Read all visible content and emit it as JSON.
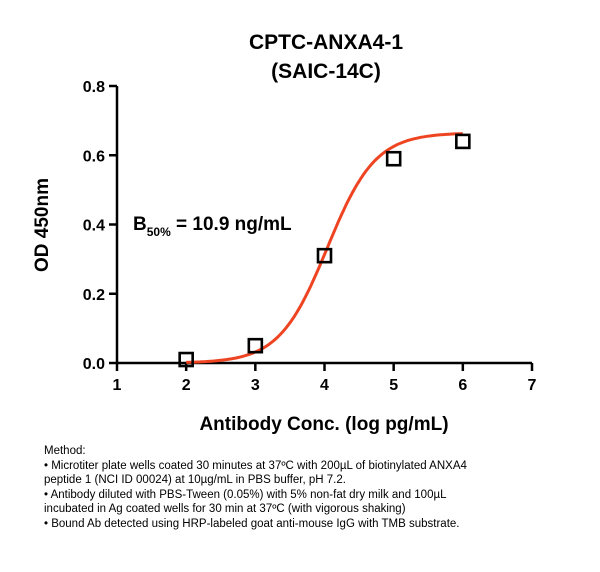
{
  "chart_data": {
    "type": "scatter",
    "title": [
      "CPTC-ANXA4-1",
      "(SAIC-14C)"
    ],
    "xlabel": "Antibody Conc. (log pg/mL)",
    "ylabel": "OD 450nm",
    "xlim": [
      1,
      7
    ],
    "ylim": [
      0,
      0.8
    ],
    "x_ticks": [
      "1",
      "2",
      "3",
      "4",
      "5",
      "6",
      "7"
    ],
    "y_ticks": [
      "0.0",
      "0.2",
      "0.4",
      "0.6",
      "0.8"
    ],
    "series": [
      {
        "x": [
          2,
          3,
          4,
          5,
          6
        ],
        "y": [
          0.01,
          0.05,
          0.31,
          0.59,
          0.64
        ],
        "marker": "open-square",
        "color": "#000000"
      }
    ],
    "fit_curve": {
      "type": "sigmoidal",
      "color": "#ee4422",
      "bottom": 0.0,
      "top": 0.665,
      "logEC50": 4.04,
      "hill": 1.25,
      "x_range": [
        2,
        6
      ]
    },
    "annotation": {
      "main": "B",
      "subscript": "50%",
      "rest": " = 10.9 ng/mL"
    },
    "grid": false
  },
  "method": {
    "heading": "Method:",
    "lines": [
      "• Microtiter plate wells coated 30 minutes at 37ºC  with 200µL of biotinylated ANXA4",
      "  peptide 1 (NCI ID 00024) at 10µg/mL in PBS buffer, pH 7.2.",
      "• Antibody diluted with PBS-Tween (0.05%) with 5%  non-fat dry milk and 100µL",
      "  incubated in Ag coated wells for 30 min at 37ºC (with vigorous shaking)",
      "• Bound Ab detected using HRP-labeled goat anti-mouse IgG with TMB substrate."
    ]
  }
}
